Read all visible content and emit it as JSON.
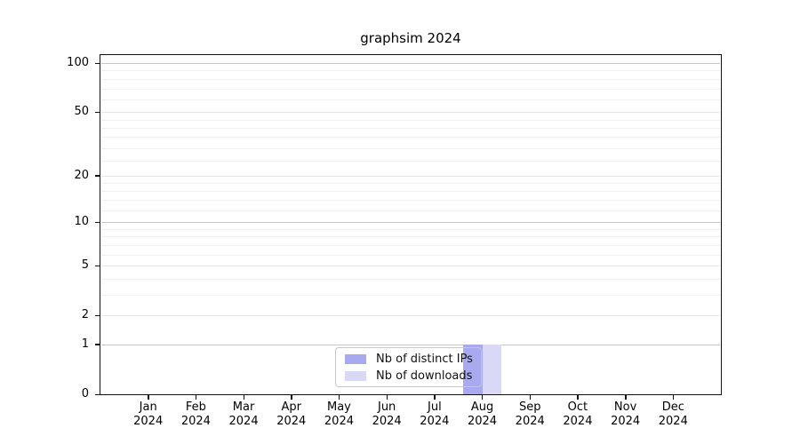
{
  "title": "graphsim 2024",
  "chart_data": {
    "type": "bar",
    "title": "graphsim 2024",
    "categories": [
      "Jan",
      "Feb",
      "Mar",
      "Apr",
      "May",
      "Jun",
      "Jul",
      "Aug",
      "Sep",
      "Oct",
      "Nov",
      "Dec"
    ],
    "category_year": "2024",
    "series": [
      {
        "name": "Nb of distinct IPs",
        "color": "#a9a9ef",
        "values": [
          0,
          0,
          0,
          0,
          0,
          0,
          0,
          1,
          0,
          0,
          0,
          0
        ]
      },
      {
        "name": "Nb of downloads",
        "color": "#d9d9f7",
        "values": [
          0,
          0,
          0,
          0,
          0,
          0,
          0,
          1,
          0,
          0,
          0,
          0
        ]
      }
    ],
    "y_scale": "log1p",
    "ylim": [
      0,
      112
    ],
    "y_ticks": [
      0,
      1,
      2,
      5,
      10,
      20,
      50,
      100
    ],
    "y_minor_gridlines": [
      3,
      4,
      6,
      7,
      8,
      9,
      12,
      14,
      16,
      18,
      25,
      30,
      35,
      40,
      45,
      60,
      70,
      80,
      90
    ],
    "xlabel": "",
    "ylabel": "",
    "grid": "horizontal",
    "legend_position": "lower center",
    "colors": {
      "major_grid": "#c6c6c6",
      "labeled_grid": "#e4e4e4",
      "minor_grid": "#f0f0f0",
      "spine": "#111111",
      "legend_border": "#c8c8c8"
    }
  }
}
